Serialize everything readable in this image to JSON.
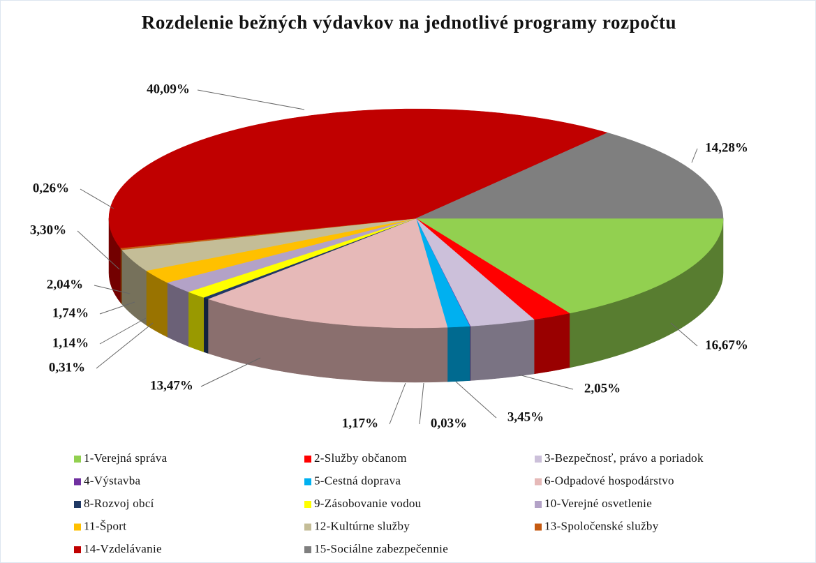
{
  "chart_data": {
    "type": "pie3d",
    "title": "Rozdelenie bežných výdavkov na jednotlivé programy rozpočtu",
    "categories": [
      "1-Verejná správa",
      "2-Služby občanom",
      "3-Bezpečnosť, právo a poriadok",
      "4-Výstavba",
      "5-Cestná doprava",
      "6-Odpadové hospodárstvo",
      "8-Rozvoj obcí",
      "9-Zásobovanie vodou",
      "10-Verejné osvetlenie",
      "11-Šport",
      "12-Kultúrne služby",
      "13-Spoločenské služby",
      "14-Vzdelávanie",
      "15-Sociálne zabezpečennie"
    ],
    "values": [
      16.67,
      2.05,
      3.45,
      0.03,
      1.17,
      13.47,
      0.31,
      1.14,
      1.74,
      2.04,
      3.3,
      0.26,
      40.09,
      14.28
    ],
    "value_labels": [
      "16,67%",
      "2,05%",
      "3,45%",
      "0,03%",
      "1,17%",
      "13,47%",
      "0,31%",
      "1,14%",
      "1,74%",
      "2,04%",
      "3,30%",
      "0,26%",
      "40,09%",
      "14,28%"
    ],
    "colors": [
      "#92d050",
      "#ff0000",
      "#ccc0da",
      "#7030a0",
      "#00b0f0",
      "#e6b9b8",
      "#1f3864",
      "#ffff00",
      "#b3a2c7",
      "#ffc000",
      "#c4bd97",
      "#c55a11",
      "#c00000",
      "#7f7f7f"
    ],
    "legend": "bottom"
  }
}
